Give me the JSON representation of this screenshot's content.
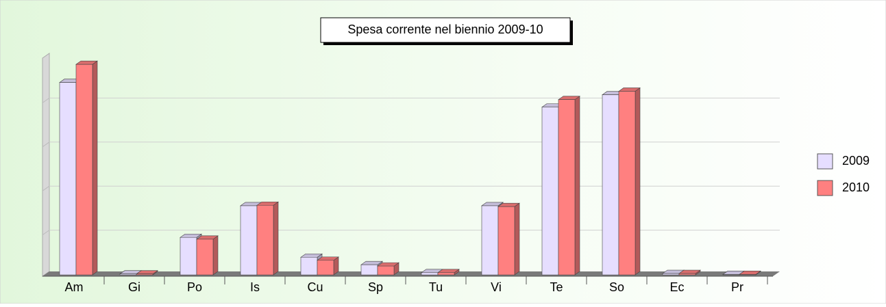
{
  "chart_data": {
    "type": "bar3d",
    "title": "Spesa corrente nel biennio 2009-10",
    "categories": [
      "Am",
      "Gi",
      "Po",
      "Is",
      "Cu",
      "Sp",
      "Tu",
      "Vi",
      "Te",
      "So",
      "Ec",
      "Pr"
    ],
    "series": [
      {
        "name": "2009",
        "color": "#e6deff",
        "values": [
          4.37,
          0.02,
          0.85,
          1.57,
          0.4,
          0.23,
          0.05,
          1.57,
          3.81,
          4.09,
          0.03,
          0.01
        ]
      },
      {
        "name": "2010",
        "color": "#ff8080",
        "values": [
          4.78,
          0.02,
          0.81,
          1.58,
          0.33,
          0.2,
          0.05,
          1.55,
          3.98,
          4.17,
          0.03,
          0.01
        ]
      }
    ],
    "ylim": [
      0,
      5
    ],
    "yticks": [
      1,
      2,
      3,
      4
    ],
    "grid": true,
    "legend": "right"
  }
}
